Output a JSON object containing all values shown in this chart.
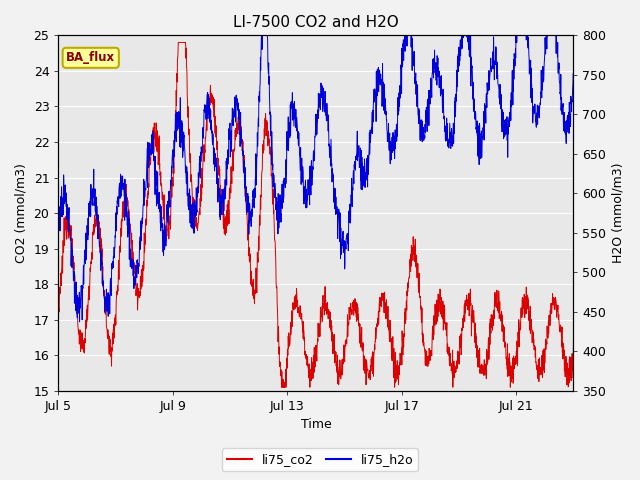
{
  "title": "LI-7500 CO2 and H2O",
  "xlabel": "Time",
  "ylabel_left": "CO2 (mmol/m3)",
  "ylabel_right": "H2O (mmol/m3)",
  "ylim_left": [
    15.0,
    25.0
  ],
  "ylim_right": [
    350,
    800
  ],
  "yticks_left": [
    15.0,
    16.0,
    17.0,
    18.0,
    19.0,
    20.0,
    21.0,
    22.0,
    23.0,
    24.0,
    25.0
  ],
  "yticks_right": [
    350,
    400,
    450,
    500,
    550,
    600,
    650,
    700,
    750,
    800
  ],
  "xtick_labels": [
    "Jul 5",
    "Jul 9",
    "Jul 13",
    "Jul 17",
    "Jul 21"
  ],
  "xtick_positions": [
    5,
    9,
    13,
    17,
    21
  ],
  "xmin": 5,
  "xmax": 23,
  "co2_color": "#dd0000",
  "h2o_color": "#0000dd",
  "background_color": "#e8e8e8",
  "grid_color": "#ffffff",
  "annotation_text": "BA_flux",
  "annotation_bg": "#ffff99",
  "annotation_border": "#bbaa00",
  "legend_co2": "li75_co2",
  "legend_h2o": "li75_h2o",
  "title_fontsize": 11,
  "axis_fontsize": 9,
  "tick_fontsize": 9
}
